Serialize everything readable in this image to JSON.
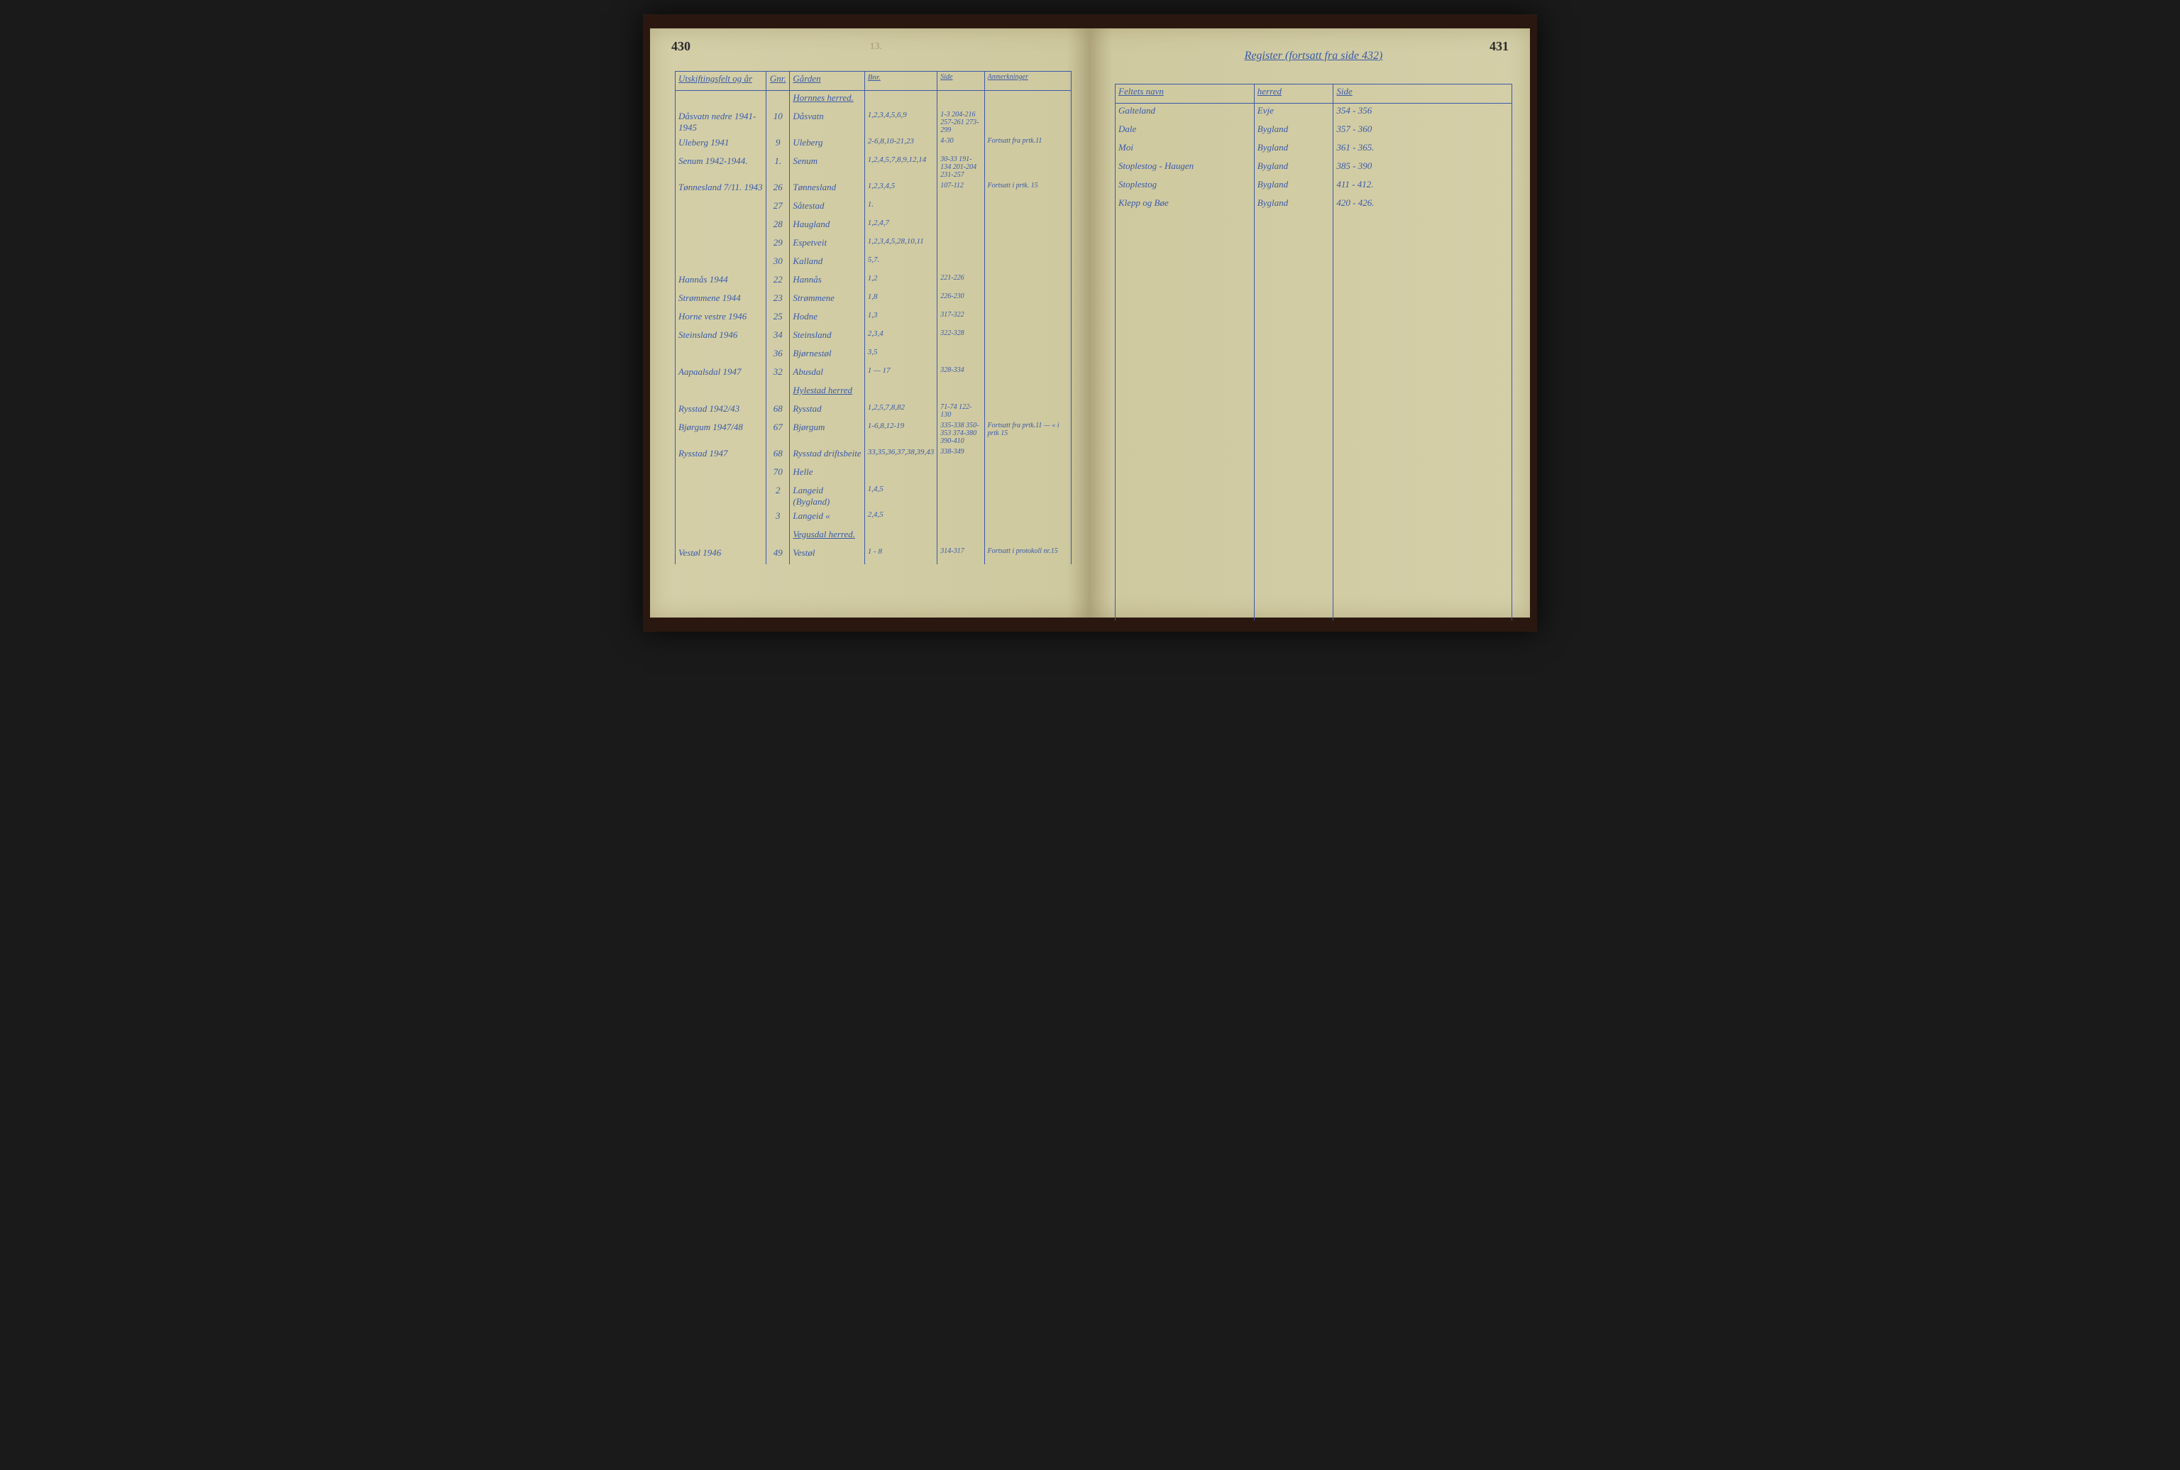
{
  "left": {
    "pageNum": "430",
    "pencil": "13.",
    "headers": [
      "Utskiftingsfelt og år",
      "Gnr.",
      "Gården",
      "Bnr.",
      "Side",
      "Anmerkninger"
    ],
    "sections": [
      {
        "title": "Hornnes herred.",
        "rows": [
          {
            "c1": "Dåsvatn nedre 1941-1945",
            "c2": "10",
            "c3": "Dåsvatn",
            "c4": "1,2,3,4,5,6,9",
            "c5": "1-3 204-216 257-261 273-299",
            "c6": ""
          },
          {
            "c1": "Uleberg 1941",
            "c2": "9",
            "c3": "Uleberg",
            "c4": "2-6,8,10-21,23",
            "c5": "4-30",
            "c6": "Fortsatt fra prtk.11"
          },
          {
            "c1": "Senum 1942-1944.",
            "c2": "1.",
            "c3": "Senum",
            "c4": "1,2,4,5,7,8,9,12,14",
            "c5": "30-33 191-134 201-204 231-257",
            "c6": ""
          },
          {
            "c1": "Tønnesland 7/11. 1943",
            "c2": "26",
            "c3": "Tønnesland",
            "c4": "1,2,3,4,5",
            "c5": "107-112",
            "c6": "Fortsatt i prtk. 15"
          },
          {
            "c1": "",
            "c2": "27",
            "c3": "Såtestad",
            "c4": "1.",
            "c5": "",
            "c6": ""
          },
          {
            "c1": "",
            "c2": "28",
            "c3": "Haugland",
            "c4": "1,2,4,7",
            "c5": "",
            "c6": ""
          },
          {
            "c1": "",
            "c2": "29",
            "c3": "Espetveit",
            "c4": "1,2,3,4,5,28,10,11",
            "c5": "",
            "c6": ""
          },
          {
            "c1": "",
            "c2": "30",
            "c3": "Kalland",
            "c4": "5,7.",
            "c5": "",
            "c6": ""
          },
          {
            "c1": "Hannås 1944",
            "c2": "22",
            "c3": "Hannås",
            "c4": "1,2",
            "c5": "221-226",
            "c6": ""
          },
          {
            "c1": "Strømmene 1944",
            "c2": "23",
            "c3": "Strømmene",
            "c4": "1,8",
            "c5": "226-230",
            "c6": ""
          },
          {
            "c1": "Horne vestre 1946",
            "c2": "25",
            "c3": "Hodne",
            "c4": "1,3",
            "c5": "317-322",
            "c6": ""
          },
          {
            "c1": "Steinsland 1946",
            "c2": "34",
            "c3": "Steinsland",
            "c4": "2,3,4",
            "c5": "322-328",
            "c6": ""
          },
          {
            "c1": "",
            "c2": "36",
            "c3": "Bjørnestøl",
            "c4": "3,5",
            "c5": "",
            "c6": ""
          },
          {
            "c1": "Aapaalsdal 1947",
            "c2": "32",
            "c3": "Abusdal",
            "c4": "1 — 17",
            "c5": "328-334",
            "c6": ""
          }
        ]
      },
      {
        "title": "Hylestad herred",
        "rows": [
          {
            "c1": "Rysstad 1942/43",
            "c2": "68",
            "c3": "Rysstad",
            "c4": "1,2,5,7,8,82",
            "c5": "71-74 122-130",
            "c6": ""
          },
          {
            "c1": "Bjørgum 1947/48",
            "c2": "67",
            "c3": "Bjørgum",
            "c4": "1-6,8,12-19",
            "c5": "335-338 350-353 374-380 390-410",
            "c6": "Fortsatt fra prtk.11 — « i prtk 15"
          },
          {
            "c1": "Rysstad 1947",
            "c2": "68",
            "c3": "Rysstad driftsbeite",
            "c4": "33,35,36,37,38,39,43",
            "c5": "338-349",
            "c6": ""
          },
          {
            "c1": "",
            "c2": "70",
            "c3": "Helle",
            "c4": "",
            "c5": "",
            "c6": ""
          },
          {
            "c1": "",
            "c2": "2",
            "c3": "Langeid (Bygland)",
            "c4": "1,4,5",
            "c5": "",
            "c6": ""
          },
          {
            "c1": "",
            "c2": "3",
            "c3": "Langeid «",
            "c4": "2,4,5",
            "c5": "",
            "c6": ""
          }
        ]
      },
      {
        "title": "Vegusdal herred.",
        "rows": [
          {
            "c1": "Vestøl 1946",
            "c2": "49",
            "c3": "Vestøl",
            "c4": "1 - 8",
            "c5": "314-317",
            "c6": "Fortsatt i protokoll nr.15"
          }
        ]
      }
    ]
  },
  "right": {
    "pageNum": "431",
    "heading": "Register (fortsatt fra side 432)",
    "headers": [
      "Feltets navn",
      "herred",
      "Side"
    ],
    "rows": [
      {
        "r1": "Galteland",
        "r2": "Evje",
        "r3": "354 - 356"
      },
      {
        "r1": "Dale",
        "r2": "Bygland",
        "r3": "357 - 360"
      },
      {
        "r1": "Moi",
        "r2": "Bygland",
        "r3": "361 - 365."
      },
      {
        "r1": "Stoplestog - Haugen",
        "r2": "Bygland",
        "r3": "385 - 390"
      },
      {
        "r1": "Stoplestog",
        "r2": "Bygland",
        "r3": "411 - 412."
      },
      {
        "r1": "Klepp og Bøe",
        "r2": "Bygland",
        "r3": "420 - 426."
      }
    ],
    "blankRows": 22
  },
  "colors": {
    "ink": "#3a5aa8",
    "paper": "#d4cfa8",
    "bookCover": "#2a1810",
    "background": "#1a1a1a"
  }
}
